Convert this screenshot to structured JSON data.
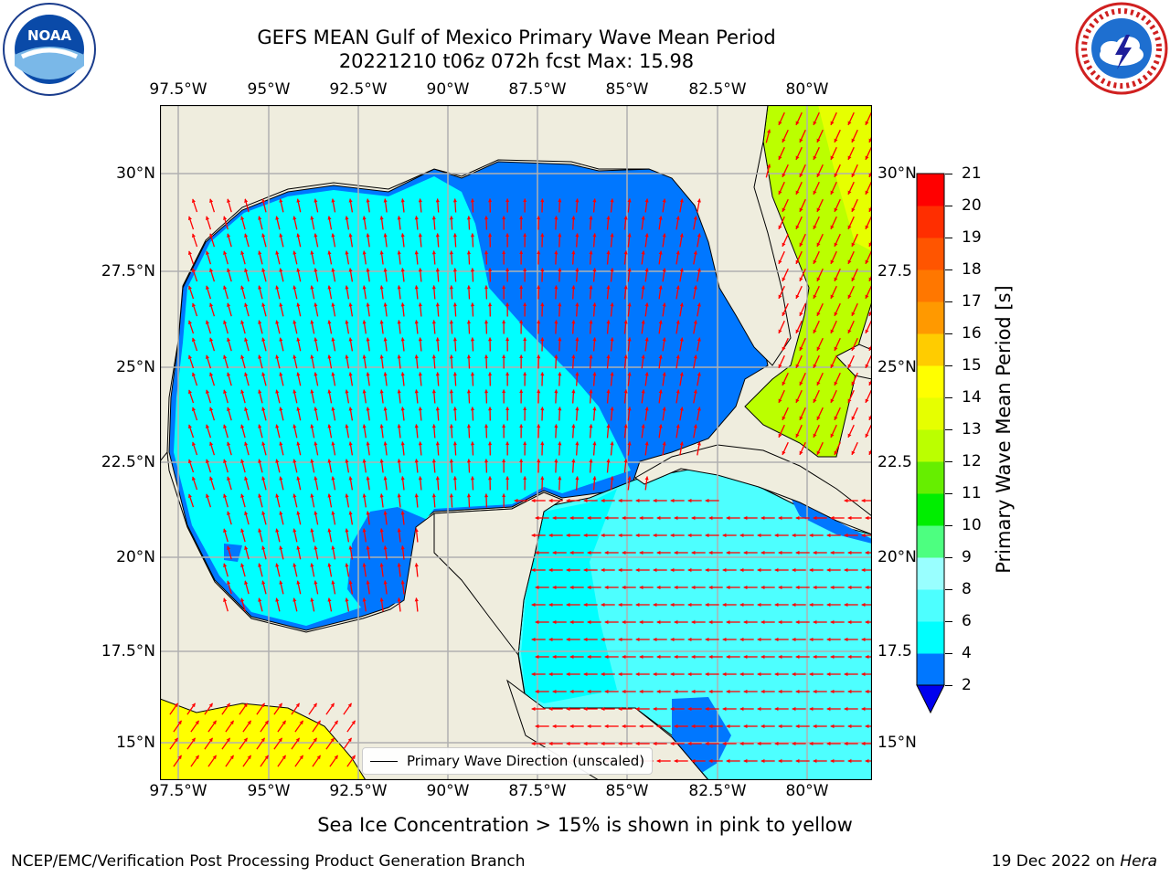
{
  "title": {
    "line1": "GEFS MEAN Gulf of Mexico Primary Wave Mean Period",
    "line2": "20221210 t06z 072h fcst   Max: 15.98"
  },
  "logos": {
    "left": {
      "icon": "noaa-logo",
      "text": "NOAA"
    },
    "right": {
      "icon": "nws-logo"
    }
  },
  "map": {
    "lon_ticks": [
      "97.5°W",
      "95°W",
      "92.5°W",
      "90°W",
      "87.5°W",
      "85°W",
      "82.5°W",
      "80°W"
    ],
    "lat_ticks_left": [
      "30°N",
      "27.5°N",
      "25°N",
      "22.5°N",
      "20°N",
      "17.5°N",
      "15°N"
    ],
    "lat_ticks_right": [
      "30°N",
      "27.5",
      "25°N",
      "22.5",
      "20°N",
      "17.5",
      "15°N"
    ],
    "colors": {
      "land": "#efedde",
      "coast": "#000000",
      "grid": "#b0b0b0",
      "arrow": "#ff0000"
    },
    "legend_label": "Primary Wave Direction (unscaled)"
  },
  "colorbar": {
    "label": "Primary Wave Mean Period [s]",
    "ticks": [
      "2",
      "4",
      "6",
      "8",
      "9",
      "10",
      "11",
      "12",
      "13",
      "14",
      "15",
      "16",
      "17",
      "18",
      "19",
      "20",
      "21"
    ],
    "colors": [
      "#0077ff",
      "#00ffff",
      "#4dffff",
      "#99ffff",
      "#4dff80",
      "#00ee00",
      "#66ee00",
      "#bbff00",
      "#e6ff00",
      "#ffff00",
      "#ffcc00",
      "#ff9900",
      "#ff7700",
      "#ff5500",
      "#ff2e00",
      "#ff0000"
    ],
    "extend_color": "#0000ee"
  },
  "caption": "Sea Ice Concentration > 15% is shown in pink to yellow",
  "footer": {
    "left": "NCEP/EMC/Verification Post Processing Product Generation Branch",
    "date": "19 Dec 2022 on ",
    "host": "Hera"
  }
}
